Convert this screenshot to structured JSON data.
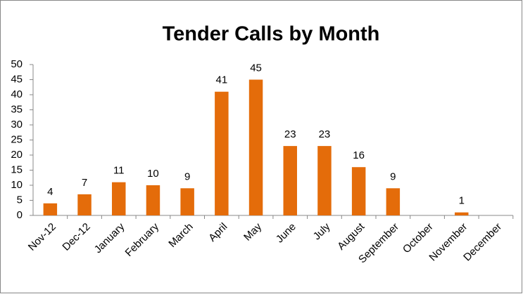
{
  "chart_data": {
    "type": "bar",
    "title": "Tender Calls by Month",
    "categories": [
      "Nov-12",
      "Dec-12",
      "January",
      "February",
      "March",
      "April",
      "May",
      "June",
      "July",
      "August",
      "September",
      "October",
      "November",
      "December"
    ],
    "values": [
      4,
      7,
      11,
      10,
      9,
      41,
      45,
      23,
      23,
      16,
      9,
      null,
      1,
      null
    ],
    "color": "#e46c0a",
    "ylim": [
      0,
      50
    ],
    "yticks": [
      0,
      5,
      10,
      15,
      20,
      25,
      30,
      35,
      40,
      45,
      50
    ],
    "grid": false
  }
}
